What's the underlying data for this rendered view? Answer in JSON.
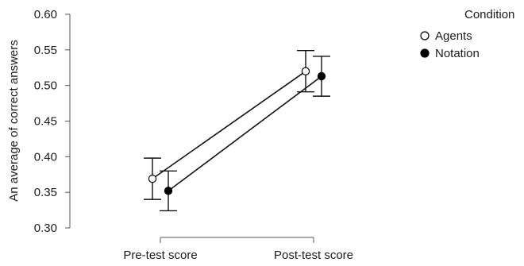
{
  "chart_data": {
    "type": "line",
    "title": "",
    "xlabel": "",
    "ylabel": "An average of correct answers",
    "categories": [
      "Pre-test score",
      "Post-test score"
    ],
    "ylim": [
      0.3,
      0.6
    ],
    "yticks": [
      "0.30",
      "0.35",
      "0.40",
      "0.45",
      "0.50",
      "0.55",
      "0.60"
    ],
    "legend": {
      "title": "Condition",
      "placement": "top-right"
    },
    "series": [
      {
        "name": "Agents",
        "marker": "open-circle",
        "values": [
          0.369,
          0.52
        ],
        "error_low": [
          0.34,
          0.491
        ],
        "error_high": [
          0.398,
          0.549
        ]
      },
      {
        "name": "Notation",
        "marker": "filled-circle",
        "values": [
          0.352,
          0.513
        ],
        "error_low": [
          0.324,
          0.485
        ],
        "error_high": [
          0.38,
          0.541
        ]
      }
    ],
    "grid": false
  }
}
